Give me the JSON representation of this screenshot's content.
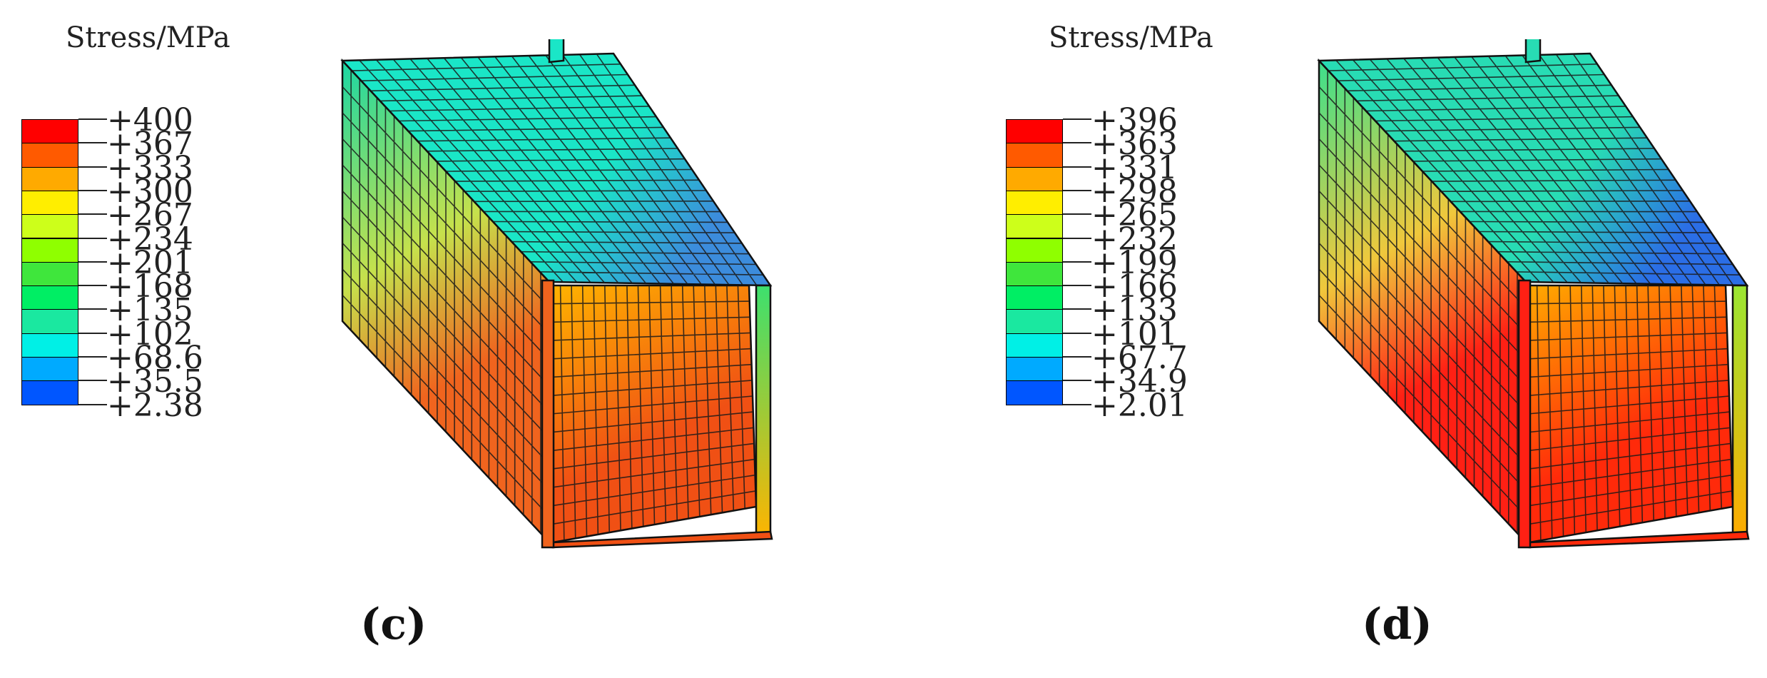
{
  "figure": {
    "panels": [
      {
        "id": "c",
        "panel_label": "(c)",
        "legend": {
          "title": "Stress/MPa",
          "tick_labels": [
            "+400",
            "+367",
            "+333",
            "+300",
            "+267",
            "+234",
            "+201",
            "+168",
            "+135",
            "+102",
            "+68.6",
            "+35.5",
            "+2.38"
          ],
          "band_colors": [
            "#ff0000",
            "#ff5a00",
            "#ffaa00",
            "#ffee00",
            "#cdff1a",
            "#8fff00",
            "#3fe63c",
            "#00ee64",
            "#1ae8a0",
            "#00f0e6",
            "#00aaff",
            "#0056ff",
            "#0000ff"
          ]
        },
        "model": {
          "icon": "steel-box-section-fea-mesh",
          "web_top_color": "#1ad7a4",
          "web_mid_color": "#c6e14c",
          "web_bottom_color": "#f0641e",
          "flange_near_color": "#1ae6c7",
          "flange_far_color": "#3c8cdc",
          "inner_web_color": "#ffb400",
          "inner_flange_color": "#f05014",
          "far_web_color": "#3de06e"
        }
      },
      {
        "id": "d",
        "panel_label": "(d)",
        "legend": {
          "title": "Stress/MPa",
          "tick_labels": [
            "+396",
            "+363",
            "+331",
            "+298",
            "+265",
            "+232",
            "+199",
            "+166",
            "+133",
            "+101",
            "+67.7",
            "+34.9",
            "+2.01"
          ],
          "band_colors": [
            "#ff0000",
            "#ff5a00",
            "#ffaa00",
            "#ffee00",
            "#cdff1a",
            "#8fff00",
            "#3fe63c",
            "#00ee64",
            "#1ae8a0",
            "#00f0e6",
            "#00aaff",
            "#0056ff",
            "#0000ff"
          ]
        },
        "model": {
          "icon": "steel-box-section-fea-mesh",
          "web_top_color": "#3ce08c",
          "web_mid_color": "#f0c83c",
          "web_bottom_color": "#ff2014",
          "flange_near_color": "#28dcb4",
          "flange_far_color": "#2b6ee6",
          "inner_web_color": "#ffaa00",
          "inner_flange_color": "#ff2a0a",
          "far_web_color": "#9be632"
        }
      }
    ]
  }
}
